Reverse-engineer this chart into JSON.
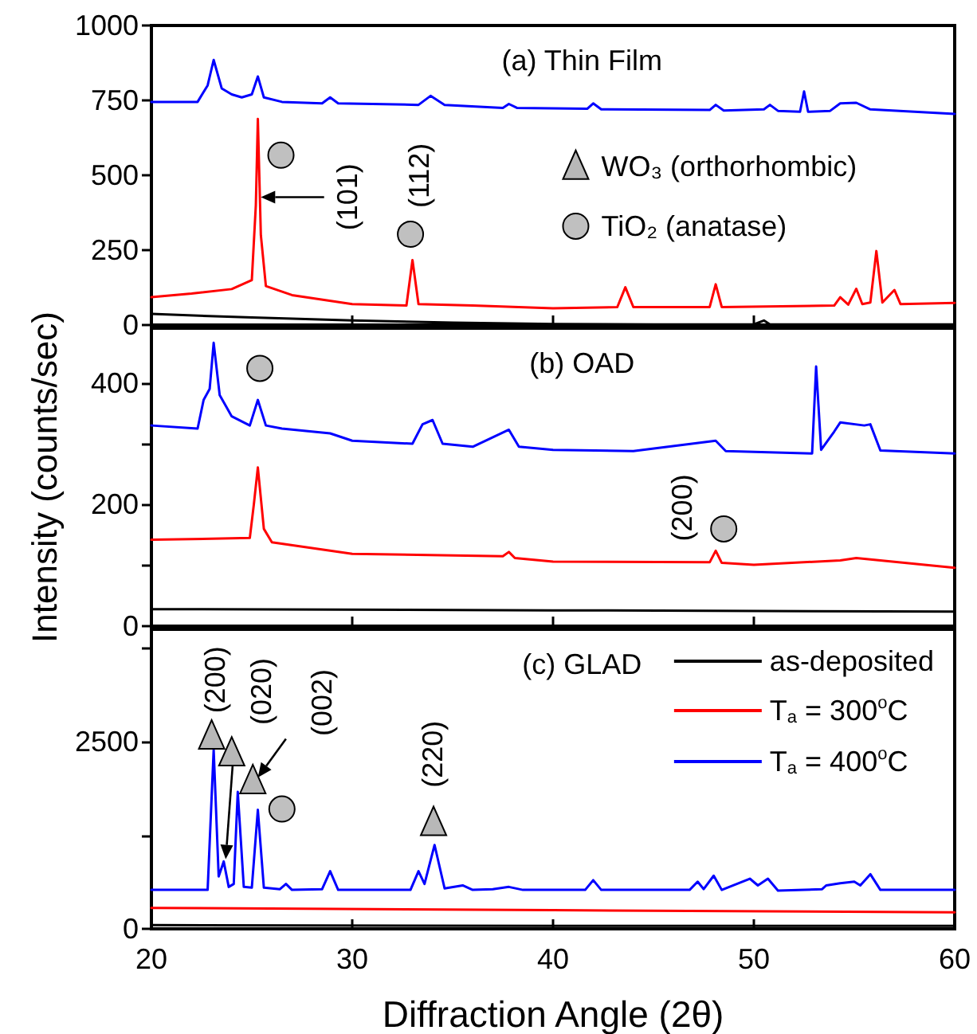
{
  "chart_data": [
    {
      "type": "line",
      "title": "(a) Thin Film",
      "xlim": [
        20,
        60
      ],
      "xticks": [
        20,
        30,
        40,
        50,
        60
      ],
      "ylim": [
        0,
        1000
      ],
      "yticks": [
        0,
        250,
        500,
        750,
        1000
      ],
      "tick_labels": "y",
      "grid": false,
      "series": [
        {
          "color": "#0000ff",
          "x": [
            20,
            22.3,
            22.8,
            23.1,
            23.5,
            24,
            24.5,
            25.0,
            25.3,
            25.6,
            26.5,
            28.5,
            28.9,
            29.3,
            33.3,
            33.9,
            34.6,
            37.5,
            37.8,
            38.2,
            41.7,
            42.0,
            42.4,
            47.8,
            48.1,
            48.5,
            50.5,
            50.8,
            51.2,
            52.3,
            52.5,
            52.7,
            53.8,
            54.3,
            55.1,
            55.8,
            60
          ],
          "values": [
            745,
            745,
            800,
            885,
            790,
            770,
            760,
            770,
            830,
            760,
            745,
            740,
            760,
            740,
            735,
            765,
            735,
            725,
            738,
            725,
            722,
            740,
            720,
            718,
            735,
            716,
            720,
            735,
            715,
            712,
            780,
            712,
            715,
            740,
            742,
            720,
            705
          ]
        },
        {
          "color": "#ff0000",
          "x": [
            20,
            22,
            24,
            25.0,
            25.2,
            25.3,
            25.45,
            25.7,
            27,
            30,
            32.7,
            33.0,
            33.3,
            36,
            40,
            43.2,
            43.6,
            44.0,
            47.8,
            48.1,
            48.4,
            54.0,
            54.3,
            54.7,
            55.1,
            55.4,
            55.8,
            56.1,
            56.4,
            57.0,
            57.3,
            60
          ],
          "values": [
            93,
            105,
            120,
            150,
            400,
            688,
            300,
            130,
            100,
            70,
            65,
            217,
            70,
            65,
            56,
            60,
            126,
            60,
            60,
            136,
            60,
            65,
            93,
            68,
            121,
            70,
            75,
            247,
            75,
            117,
            70,
            74
          ]
        },
        {
          "color": "#000000",
          "x": [
            20,
            25,
            30,
            35,
            40,
            45,
            50,
            50.5,
            50.8,
            60
          ],
          "values": [
            37,
            25,
            15,
            8,
            3,
            2,
            2,
            15,
            2,
            2
          ]
        }
      ],
      "annotations": [
        {
          "text": "(101)",
          "x": 25.3,
          "y": 688
        },
        {
          "text": "(112)",
          "x": 33.0,
          "y": 217
        },
        "WO₃ (orthorhombic)",
        "TiO₂ (anatase)"
      ]
    },
    {
      "type": "line",
      "title": "(b) OAD",
      "ylabel": "Intensity (counts/sec)",
      "xlim": [
        20,
        60
      ],
      "xticks": [
        20,
        30,
        40,
        50,
        60
      ],
      "ylim": [
        0,
        490
      ],
      "yticks": [
        0,
        {
          "value": 100,
          "label": null
        },
        200,
        {
          "value": 300,
          "label": null
        },
        400
      ],
      "tick_labels": "y",
      "grid": false,
      "series": [
        {
          "color": "#0000ff",
          "x": [
            20,
            22.3,
            22.6,
            22.9,
            23.1,
            23.4,
            24,
            24.9,
            25.3,
            25.7,
            26.5,
            28.9,
            30,
            33.0,
            33.5,
            34.0,
            34.5,
            36,
            37.8,
            38.3,
            40,
            44,
            48.1,
            48.6,
            52.9,
            53.1,
            53.35,
            54.0,
            54.3,
            55.5,
            55.8,
            56.3,
            60
          ],
          "values": [
            330,
            325,
            372,
            390,
            466,
            380,
            345,
            330,
            372,
            330,
            325,
            317,
            305,
            300,
            332,
            339,
            300,
            295,
            323,
            295,
            290,
            288,
            305,
            288,
            284,
            427,
            290,
            320,
            335,
            330,
            332,
            289,
            284
          ]
        },
        {
          "color": "#ff0000",
          "x": [
            20,
            24.9,
            25.1,
            25.3,
            25.6,
            26,
            30,
            37.5,
            37.8,
            38.1,
            40,
            47.8,
            48.1,
            48.4,
            50,
            54.3,
            55.1,
            60
          ],
          "values": [
            142,
            145,
            200,
            261,
            160,
            138,
            119,
            115,
            122,
            112,
            106,
            105,
            124,
            104,
            101,
            108,
            112,
            96
          ]
        },
        {
          "color": "#000000",
          "x": [
            20,
            40,
            60
          ],
          "values": [
            28,
            26,
            24
          ]
        }
      ],
      "annotations": [
        {
          "text": "(200)",
          "x": 48.1,
          "y": 124
        }
      ]
    },
    {
      "type": "line",
      "title": "(c) GLAD",
      "xlabel": "Diffraction Angle (2θ)",
      "xlim": [
        20,
        60
      ],
      "xticks": [
        20,
        30,
        40,
        50,
        60
      ],
      "ylim": [
        0,
        4000
      ],
      "yticks": [
        0,
        {
          "value": 1250,
          "label": null
        },
        2500,
        {
          "value": 3750,
          "label": null
        }
      ],
      "grid": false,
      "legend": "top right",
      "series": [
        {
          "name": "as-deposited",
          "color": "#000000",
          "x": [
            20,
            40,
            60
          ],
          "values": [
            50,
            40,
            40
          ]
        },
        {
          "name": "T$_{a}$ = 300$^{o}$C",
          "color": "#ff0000",
          "x": [
            20,
            40,
            60
          ],
          "values": [
            280,
            250,
            220
          ]
        },
        {
          "name": "T$_{a}$ = 400$^{o}$C",
          "color": "#0000ff",
          "x": [
            20,
            22.8,
            23.1,
            23.35,
            23.6,
            23.85,
            24.1,
            24.3,
            24.6,
            25.0,
            25.3,
            25.6,
            26.4,
            26.7,
            27.0,
            28.5,
            28.9,
            29.3,
            32.9,
            33.3,
            33.6,
            34.1,
            34.6,
            35.5,
            36,
            37,
            37.8,
            38.5,
            41.6,
            42.0,
            42.4,
            46.8,
            47.2,
            47.5,
            48.0,
            48.4,
            49.8,
            50.2,
            50.7,
            51.2,
            53.4,
            53.6,
            54.3,
            55.0,
            55.3,
            55.8,
            56.3,
            60
          ],
          "values": [
            520,
            520,
            2390,
            700,
            900,
            560,
            600,
            1830,
            560,
            550,
            1590,
            550,
            530,
            600,
            520,
            530,
            770,
            520,
            520,
            770,
            600,
            1120,
            540,
            580,
            520,
            530,
            560,
            520,
            520,
            650,
            520,
            520,
            630,
            530,
            710,
            520,
            670,
            580,
            670,
            510,
            530,
            580,
            610,
            630,
            580,
            730,
            520,
            520
          ]
        }
      ],
      "annotations": [
        {
          "text": "(200)",
          "x": 23.1,
          "y": 2390
        },
        "(020)",
        "(002)",
        {
          "text": "(220)",
          "x": 34.1,
          "y": 1120
        }
      ]
    }
  ]
}
